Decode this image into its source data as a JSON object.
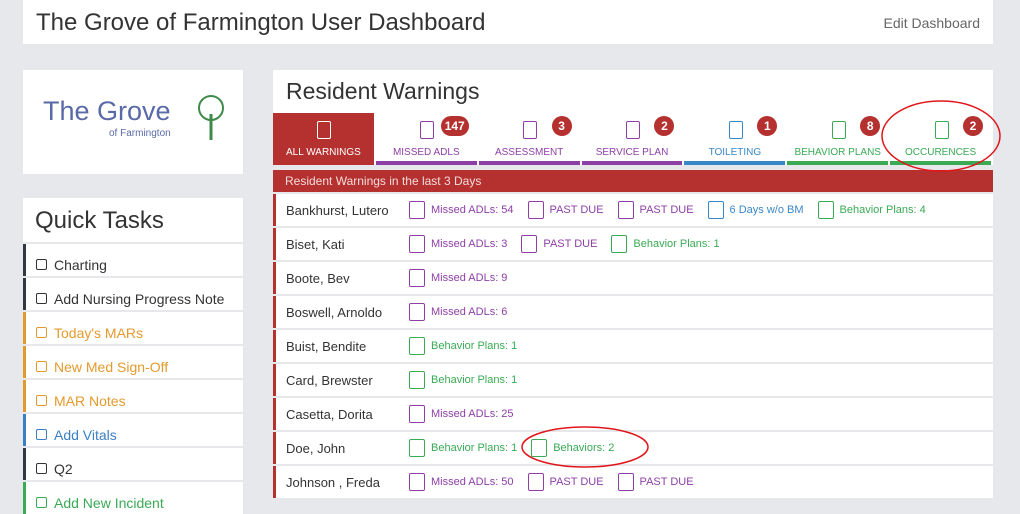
{
  "header": {
    "title": "The Grove of Farmington User Dashboard",
    "edit": "Edit Dashboard"
  },
  "logo": {
    "name": "The Grove",
    "sub": "of Farmington"
  },
  "quick_tasks": {
    "title": "Quick Tasks",
    "items": [
      {
        "label": "Charting",
        "color": "#2f3a45"
      },
      {
        "label": "Add Nursing Progress Note",
        "color": "#2f3a45"
      },
      {
        "label": "Today's MARs",
        "color": "#e39a2d"
      },
      {
        "label": "New Med Sign-Off",
        "color": "#e39a2d"
      },
      {
        "label": "MAR Notes",
        "color": "#e39a2d"
      },
      {
        "label": "Add Vitals",
        "color": "#3a7fc4"
      },
      {
        "label": "Q2",
        "color": "#2f3a45"
      },
      {
        "label": "Add New Incident",
        "color": "#3aaa55"
      }
    ]
  },
  "warnings": {
    "title": "Resident Warnings",
    "tabs": [
      {
        "label": "ALL WARNINGS",
        "color": "#b5312f"
      },
      {
        "label": "MISSED ADLS",
        "count": "147",
        "color": "#8e3fa6"
      },
      {
        "label": "ASSESSMENT",
        "count": "3",
        "color": "#8e3fa6"
      },
      {
        "label": "SERVICE PLAN",
        "count": "2",
        "color": "#8e3fa6"
      },
      {
        "label": "TOILETING",
        "count": "1",
        "color": "#3a87c8"
      },
      {
        "label": "BEHAVIOR PLANS",
        "count": "8",
        "color": "#3aaa55"
      },
      {
        "label": "OCCURENCES",
        "count": "2",
        "color": "#3aaa55"
      }
    ],
    "subheader": "Resident Warnings in the last 3 Days",
    "rows": [
      {
        "name": "Bankhurst, Lutero",
        "items": [
          {
            "text": "Missed ADLs: 54",
            "color": "#8e3fa6"
          },
          {
            "text": "PAST DUE",
            "color": "#8e3fa6"
          },
          {
            "text": "PAST DUE",
            "color": "#8e3fa6"
          },
          {
            "text": "6 Days w/o BM",
            "color": "#3a87c8"
          },
          {
            "text": "Behavior Plans: 4",
            "color": "#3aaa55"
          }
        ]
      },
      {
        "name": "Biset, Kati",
        "items": [
          {
            "text": "Missed ADLs: 3",
            "color": "#8e3fa6"
          },
          {
            "text": "PAST DUE",
            "color": "#8e3fa6"
          },
          {
            "text": "Behavior Plans: 1",
            "color": "#3aaa55"
          }
        ]
      },
      {
        "name": "Boote, Bev",
        "items": [
          {
            "text": "Missed ADLs: 9",
            "color": "#8e3fa6"
          }
        ]
      },
      {
        "name": "Boswell, Arnoldo",
        "items": [
          {
            "text": "Missed ADLs: 6",
            "color": "#8e3fa6"
          }
        ]
      },
      {
        "name": "Buist, Bendite",
        "items": [
          {
            "text": "Behavior Plans: 1",
            "color": "#3aaa55"
          }
        ]
      },
      {
        "name": "Card, Brewster",
        "items": [
          {
            "text": "Behavior Plans: 1",
            "color": "#3aaa55"
          }
        ]
      },
      {
        "name": "Casetta, Dorita",
        "items": [
          {
            "text": "Missed ADLs: 25",
            "color": "#8e3fa6"
          }
        ]
      },
      {
        "name": "Doe, John",
        "items": [
          {
            "text": "Behavior Plans: 1",
            "color": "#3aaa55"
          },
          {
            "text": "Behaviors: 2",
            "color": "#3aaa55"
          }
        ]
      },
      {
        "name": "Johnson , Freda",
        "items": [
          {
            "text": "Missed ADLs: 50",
            "color": "#8e3fa6"
          },
          {
            "text": "PAST DUE",
            "color": "#8e3fa6"
          },
          {
            "text": "PAST DUE",
            "color": "#8e3fa6"
          }
        ]
      }
    ]
  }
}
